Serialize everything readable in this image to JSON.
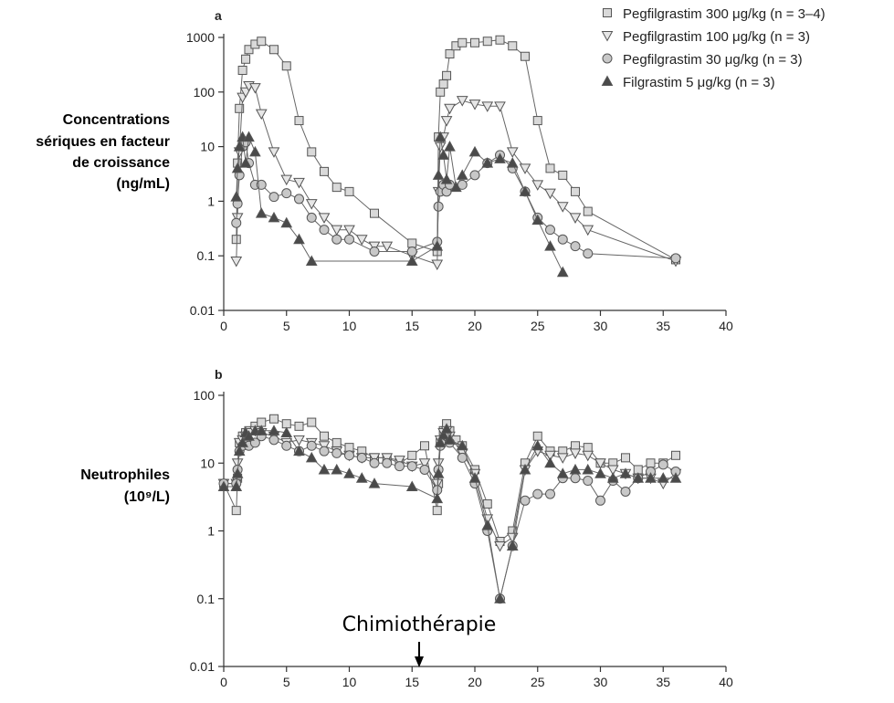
{
  "legend": [
    {
      "marker": "square",
      "label": "Pegfilgrastim 300 μg/kg (n = 3–4)"
    },
    {
      "marker": "triangle-down",
      "label": "Pegfilgrastim 100 μg/kg (n = 3)"
    },
    {
      "marker": "circle",
      "label": "Pegfilgrastim 30 μg/kg (n = 3)"
    },
    {
      "marker": "triangle-up",
      "label": "Filgrastim 5 μg/kg (n = 3)"
    }
  ],
  "colors": {
    "square": "#d9d9d9",
    "triangle-down": "#e6e6e6",
    "circle": "#c8c8c8",
    "triangle-up": "#4a4a4a",
    "line": "#666666"
  },
  "annotation": "Chimiothérapie",
  "chart_data": [
    {
      "type": "line",
      "panel": "a",
      "ylabel": [
        "Concentrations",
        "sériques en facteur",
        "de croissance",
        "(ng/mL)"
      ],
      "xlabel": "",
      "xlim": [
        0,
        40
      ],
      "ylim": [
        0.01,
        1000
      ],
      "yscale": "log",
      "xticks": [
        0,
        5,
        10,
        15,
        20,
        25,
        30,
        35,
        40
      ],
      "yticks": [
        0.01,
        0.1,
        1,
        10,
        100,
        1000
      ],
      "ytick_labels": [
        "0.01",
        "0.1",
        "1",
        "10",
        "100",
        "1000"
      ],
      "grid": false,
      "series": [
        {
          "name": "Pegfilgrastim 300 μg/kg (n = 3–4)",
          "marker": "square",
          "x": [
            1,
            1.1,
            1.25,
            1.5,
            1.75,
            2,
            2.5,
            3,
            4,
            5,
            6,
            7,
            8,
            9,
            10,
            12,
            15,
            17,
            17.1,
            17.25,
            17.5,
            17.75,
            18,
            18.5,
            19,
            20,
            21,
            22,
            23,
            24,
            25,
            26,
            27,
            28,
            29,
            36
          ],
          "y": [
            0.2,
            5,
            50,
            250,
            400,
            600,
            750,
            850,
            600,
            300,
            30,
            8,
            3.5,
            1.8,
            1.5,
            0.6,
            0.17,
            0.12,
            15,
            100,
            140,
            200,
            500,
            700,
            800,
            800,
            850,
            900,
            700,
            450,
            30,
            4,
            3,
            1.5,
            0.65,
            0.085
          ]
        },
        {
          "name": "Pegfilgrastim 100 μg/kg (n = 3)",
          "marker": "triangle-down",
          "x": [
            1,
            1.1,
            1.25,
            1.5,
            1.75,
            2,
            2.5,
            3,
            4,
            5,
            6,
            7,
            8,
            9,
            10,
            11,
            12,
            13,
            15,
            17,
            17.1,
            17.25,
            17.5,
            17.75,
            18,
            19,
            20,
            21,
            22,
            23,
            24,
            25,
            26,
            27,
            28,
            29,
            36
          ],
          "y": [
            0.08,
            0.5,
            8,
            80,
            100,
            130,
            120,
            40,
            8,
            2.5,
            2.2,
            0.9,
            0.5,
            0.3,
            0.3,
            0.2,
            0.15,
            0.15,
            0.1,
            0.07,
            1.5,
            10,
            15,
            30,
            50,
            70,
            60,
            55,
            55,
            8,
            4,
            2,
            1.4,
            0.8,
            0.5,
            0.3,
            0.08
          ]
        },
        {
          "name": "Pegfilgrastim 30 μg/kg (n = 3)",
          "marker": "circle",
          "x": [
            1,
            1.1,
            1.25,
            1.5,
            1.75,
            2,
            2.5,
            3,
            4,
            5,
            6,
            7,
            8,
            9,
            10,
            12,
            15,
            17,
            17.1,
            17.25,
            17.5,
            17.75,
            18,
            19,
            20,
            21,
            22,
            23,
            24,
            25,
            26,
            27,
            28,
            29,
            36
          ],
          "y": [
            0.4,
            0.9,
            3,
            10,
            12,
            5,
            2,
            2,
            1.2,
            1.4,
            1.1,
            0.5,
            0.3,
            0.2,
            0.2,
            0.12,
            0.12,
            0.18,
            0.8,
            1.5,
            2,
            1.5,
            2,
            2,
            3,
            5,
            7,
            4,
            1.5,
            0.5,
            0.3,
            0.2,
            0.15,
            0.11,
            0.09
          ]
        },
        {
          "name": "Filgrastim 5 μg/kg (n = 3)",
          "marker": "triangle-up",
          "x": [
            1,
            1.1,
            1.25,
            1.5,
            1.75,
            2,
            2.5,
            3,
            4,
            5,
            6,
            7,
            15,
            17,
            17.1,
            17.25,
            17.5,
            17.75,
            18,
            18.5,
            19,
            20,
            21,
            22,
            23,
            24,
            25,
            26,
            27
          ],
          "y": [
            1.2,
            4,
            10,
            15,
            5,
            15,
            8,
            0.6,
            0.5,
            0.4,
            0.2,
            0.08,
            0.08,
            0.15,
            3,
            15,
            7,
            2.5,
            10,
            1.8,
            3,
            8,
            5,
            6,
            5,
            1.5,
            0.45,
            0.15,
            0.05
          ]
        }
      ]
    },
    {
      "type": "line",
      "panel": "b",
      "ylabel": [
        "Neutrophiles",
        "(10⁹/L)"
      ],
      "xlabel": "",
      "xlim": [
        0,
        40
      ],
      "ylim": [
        0.01,
        100
      ],
      "yscale": "log",
      "xticks": [
        0,
        5,
        10,
        15,
        20,
        25,
        30,
        35,
        40
      ],
      "yticks": [
        0.01,
        0.1,
        1,
        10,
        100
      ],
      "ytick_labels": [
        "0.01",
        "0.1",
        "1",
        "10",
        "100"
      ],
      "grid": false,
      "series": [
        {
          "name": "Pegfilgrastim 300 μg/kg (n = 3–4)",
          "marker": "square",
          "x": [
            0,
            1,
            1.1,
            1.25,
            1.5,
            1.75,
            2,
            2.5,
            3,
            4,
            5,
            6,
            7,
            8,
            9,
            10,
            11,
            12,
            13,
            14,
            15,
            16,
            17,
            17.1,
            17.25,
            17.5,
            17.75,
            18,
            18.5,
            19,
            20,
            21,
            22,
            23,
            24,
            25,
            26,
            27,
            28,
            29,
            30,
            31,
            32,
            33,
            34,
            35,
            36
          ],
          "y": [
            5,
            2,
            6,
            20,
            25,
            28,
            30,
            35,
            40,
            45,
            38,
            35,
            40,
            25,
            20,
            17,
            15,
            12,
            12,
            10,
            13,
            18,
            2,
            5,
            20,
            30,
            38,
            30,
            22,
            18,
            8,
            2.5,
            0.7,
            1,
            10,
            25,
            15,
            15,
            18,
            17,
            10,
            10,
            12,
            8,
            10,
            10,
            13
          ]
        },
        {
          "name": "Pegfilgrastim 100 μg/kg (n = 3)",
          "marker": "triangle-down",
          "x": [
            0,
            1,
            1.1,
            1.25,
            1.5,
            1.75,
            2,
            2.5,
            3,
            4,
            5,
            6,
            7,
            8,
            9,
            10,
            11,
            12,
            13,
            14,
            15,
            16,
            17,
            17.1,
            17.25,
            17.5,
            17.75,
            18,
            19,
            20,
            21,
            22,
            23,
            24,
            25,
            26,
            27,
            28,
            29,
            30,
            31,
            32,
            33,
            34,
            35,
            36
          ],
          "y": [
            5,
            5,
            10,
            20,
            22,
            25,
            28,
            30,
            28,
            25,
            20,
            22,
            20,
            18,
            15,
            13,
            12,
            12,
            12,
            11,
            9,
            10,
            5,
            10,
            22,
            28,
            30,
            25,
            14,
            7,
            1.5,
            0.6,
            0.8,
            8,
            15,
            13,
            12,
            14,
            13,
            10,
            8,
            7,
            6,
            6,
            5,
            7
          ]
        },
        {
          "name": "Pegfilgrastim 30 μg/kg (n = 3)",
          "marker": "circle",
          "x": [
            0,
            1,
            1.1,
            1.25,
            1.5,
            1.75,
            2,
            2.5,
            3,
            4,
            5,
            6,
            7,
            8,
            9,
            10,
            11,
            12,
            13,
            14,
            15,
            16,
            17,
            17.1,
            17.25,
            17.5,
            17.75,
            18,
            19,
            20,
            21,
            22,
            23,
            24,
            25,
            26,
            27,
            28,
            29,
            30,
            31,
            32,
            33,
            34,
            35,
            36
          ],
          "y": [
            5,
            5,
            8,
            15,
            18,
            20,
            18,
            20,
            25,
            22,
            18,
            15,
            18,
            15,
            14,
            13,
            12,
            10,
            10,
            9,
            9,
            8,
            4,
            8,
            18,
            22,
            25,
            20,
            12,
            5,
            1,
            0.1,
            0.6,
            2.8,
            3.5,
            3.5,
            6,
            6,
            5.5,
            2.8,
            5.5,
            3.8,
            6,
            7.5,
            9.5,
            7.5
          ]
        },
        {
          "name": "Filgrastim 5 μg/kg (n = 3)",
          "marker": "triangle-up",
          "x": [
            0,
            1,
            1.1,
            1.25,
            1.5,
            1.75,
            2,
            2.5,
            3,
            4,
            5,
            6,
            7,
            8,
            9,
            10,
            11,
            12,
            15,
            17,
            17.1,
            17.25,
            17.5,
            17.75,
            18,
            19,
            20,
            21,
            22,
            23,
            24,
            25,
            26,
            27,
            28,
            29,
            30,
            31,
            32,
            33,
            34,
            35,
            36
          ],
          "y": [
            4.5,
            4.5,
            7,
            15,
            20,
            28,
            25,
            30,
            30,
            30,
            28,
            15,
            12,
            8,
            8,
            7,
            6,
            5,
            4.5,
            3,
            7,
            20,
            26,
            32,
            22,
            18,
            6,
            1.2,
            0.1,
            0.6,
            8,
            18,
            10,
            7,
            8,
            8,
            7,
            6,
            7,
            6,
            6,
            6,
            6
          ]
        }
      ]
    }
  ]
}
